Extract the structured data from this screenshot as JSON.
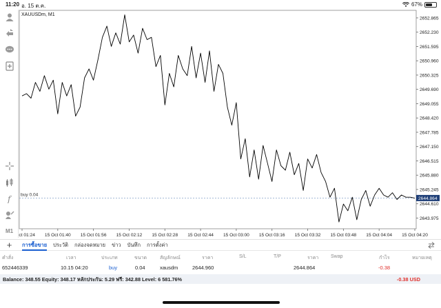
{
  "status_bar": {
    "time": "11:20",
    "date": "อ. 15 ต.ค.",
    "battery": "67%",
    "battery_level": 0.67
  },
  "chart": {
    "symbol_label": "XAUUSDm, M1",
    "position_label": "buy 0.04",
    "current_price": "2644.864",
    "price_scale": [
      "2652.865",
      "2652.230",
      "2651.595",
      "2650.960",
      "2650.325",
      "2649.690",
      "2649.055",
      "2648.420",
      "2647.785",
      "2647.150",
      "2646.515",
      "2645.880",
      "2645.245",
      "2644.610",
      "2643.975"
    ],
    "time_scale": [
      "15 Oct 01:24",
      "15 Oct 01:40",
      "15 Oct 01:56",
      "15 Oct 02:12",
      "15 Oct 02:28",
      "15 Oct 02:44",
      "15 Oct 03:00",
      "15 Oct 03:16",
      "15 Oct 03:32",
      "15 Oct 03:48",
      "15 Oct 04:04",
      "15 Oct 04:20"
    ],
    "colors": {
      "line": "#000000",
      "position_line": "#6b8fbf",
      "price_tag_bg": "#1f3f78"
    }
  },
  "chart_data": {
    "type": "line",
    "title": "XAUUSDm, M1",
    "x_ticks": [
      "15 Oct 01:24",
      "15 Oct 01:40",
      "15 Oct 01:56",
      "15 Oct 02:12",
      "15 Oct 02:28",
      "15 Oct 02:44",
      "15 Oct 03:00",
      "15 Oct 03:16",
      "15 Oct 03:32",
      "15 Oct 03:48",
      "15 Oct 04:04",
      "15 Oct 04:20"
    ],
    "y_ticks": [
      2652.865,
      2652.23,
      2651.595,
      2650.96,
      2650.325,
      2649.69,
      2649.055,
      2648.42,
      2647.785,
      2647.15,
      2646.515,
      2645.88,
      2645.245,
      2644.61,
      2643.975
    ],
    "ylim": [
      2643.5,
      2653.2
    ],
    "x_range_minutes": [
      0,
      176
    ],
    "position_level": 2644.864,
    "series": [
      {
        "x": [
          0,
          2,
          4,
          6,
          8,
          10,
          12,
          14,
          16,
          18,
          20,
          22,
          24,
          26,
          28,
          30,
          32,
          34,
          36,
          38,
          40,
          42,
          44,
          46,
          48,
          50,
          52,
          54,
          56,
          58,
          60,
          62,
          64,
          66,
          68,
          70,
          72,
          74,
          76,
          78,
          80,
          82,
          84,
          86,
          88,
          90,
          92,
          94,
          96,
          98,
          100,
          102,
          104,
          106,
          108,
          110,
          112,
          114,
          116,
          118,
          120,
          122,
          124,
          126,
          128,
          130,
          132,
          134,
          136,
          138,
          140,
          142,
          144,
          146,
          148,
          150,
          152,
          154,
          156,
          158,
          160,
          162,
          164,
          166,
          168,
          170,
          172,
          174,
          176
        ],
        "y": [
          2649.4,
          2649.5,
          2649.3,
          2650.0,
          2649.6,
          2650.3,
          2649.7,
          2650.1,
          2648.6,
          2650.0,
          2649.4,
          2649.9,
          2648.5,
          2648.9,
          2650.2,
          2650.6,
          2650.1,
          2651.0,
          2652.0,
          2652.5,
          2651.6,
          2652.2,
          2651.7,
          2653.0,
          2651.8,
          2652.1,
          2651.3,
          2652.4,
          2651.9,
          2652.0,
          2650.7,
          2651.2,
          2649.0,
          2650.4,
          2649.8,
          2651.2,
          2650.6,
          2650.3,
          2651.6,
          2650.2,
          2651.3,
          2650.0,
          2651.4,
          2649.6,
          2650.8,
          2650.4,
          2648.9,
          2648.1,
          2649.1,
          2646.6,
          2647.5,
          2645.8,
          2647.0,
          2645.7,
          2647.2,
          2646.4,
          2645.6,
          2647.0,
          2646.3,
          2646.1,
          2646.9,
          2645.9,
          2646.4,
          2645.2,
          2646.6,
          2646.2,
          2646.8,
          2646.0,
          2645.6,
          2644.9,
          2645.3,
          2643.8,
          2644.6,
          2644.3,
          2644.9,
          2643.9,
          2644.8,
          2645.2,
          2644.5,
          2645.0,
          2645.3,
          2645.0,
          2644.9,
          2645.1,
          2644.8,
          2645.0,
          2644.9,
          2644.9,
          2644.86
        ]
      }
    ]
  },
  "toolbar": {
    "icons": [
      "account-icon",
      "trade-icon",
      "chat-icon",
      "add-chart-icon",
      "crosshair-icon",
      "indicators-icon",
      "function-icon",
      "objects-icon",
      "timeframe-icon"
    ],
    "timeframe_label": "M1"
  },
  "tabs": {
    "items": [
      "การซื้อขาย",
      "ประวัติ",
      "กล่องจดหมาย",
      "ข่าว",
      "บันทึก",
      "การตั้งค่า"
    ],
    "active_index": 0
  },
  "table": {
    "headers": [
      "คำสั่ง",
      "เวลา",
      "ประเภท",
      "ขนาด",
      "สัญลักษณ์",
      "ราคา",
      "S/L",
      "T/P",
      "ราคา",
      "Swap",
      "กำไร",
      "หมายเหตุ"
    ],
    "rows": [
      {
        "order": "652446339",
        "time": "10.15 04:20",
        "type": "buy",
        "volume": "0.04",
        "symbol": "xausdm",
        "open_price": "2644.960",
        "sl": "",
        "tp": "",
        "price": "2644.864",
        "swap": "",
        "profit": "-0.38",
        "comment": ""
      }
    ]
  },
  "summary": {
    "text": "Balance: 348.55 Equity: 348.17 หลักประกัน: 5.29 ฟรี: 342.88 Level: 6 581.76%",
    "profit": "-0.38  USD"
  }
}
